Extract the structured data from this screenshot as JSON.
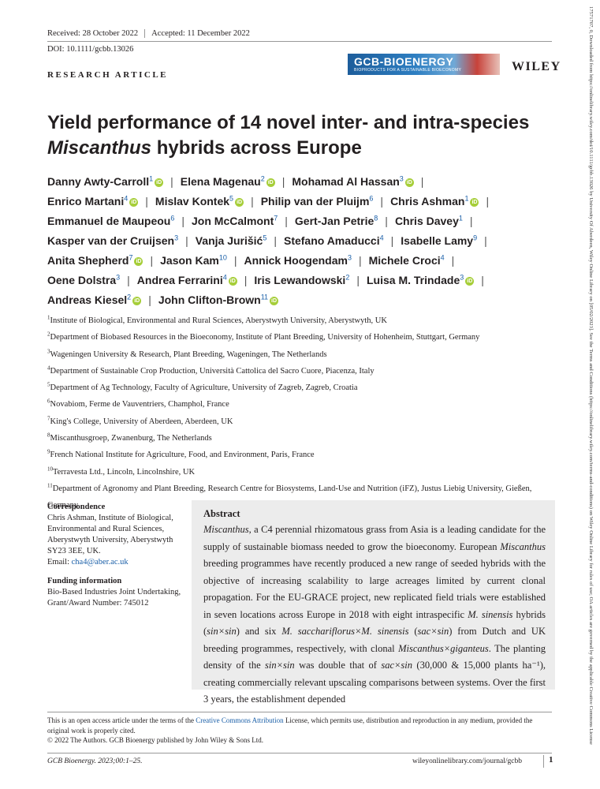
{
  "header": {
    "received": "Received: 28 October 2022",
    "accepted": "Accepted: 11 December 2022",
    "doi": "DOI: 10.1111/gcbb.13026",
    "article_type": "RESEARCH ARTICLE",
    "journal_banner_name": "GCB-BIOENERGY",
    "journal_banner_sub": "BIOPRODUCTS FOR A SUSTAINABLE BIOECONOMY",
    "publisher": "WILEY"
  },
  "title_pre": "Yield performance of 14 novel inter- and intra-species ",
  "title_italic": "Miscanthus",
  "title_post": " hybrids across Europe",
  "authors": [
    {
      "name": "Danny Awty-Carroll",
      "sup": "1",
      "orcid": true
    },
    {
      "name": "Elena Magenau",
      "sup": "2",
      "orcid": true
    },
    {
      "name": "Mohamad Al Hassan",
      "sup": "3",
      "orcid": true
    },
    {
      "name": "Enrico Martani",
      "sup": "4",
      "orcid": true
    },
    {
      "name": "Mislav Kontek",
      "sup": "5",
      "orcid": true
    },
    {
      "name": "Philip van der Pluijm",
      "sup": "6",
      "orcid": false
    },
    {
      "name": "Chris Ashman",
      "sup": "1",
      "orcid": true
    },
    {
      "name": "Emmanuel de Maupeou",
      "sup": "6",
      "orcid": false
    },
    {
      "name": "Jon McCalmont",
      "sup": "7",
      "orcid": false
    },
    {
      "name": "Gert-Jan Petrie",
      "sup": "8",
      "orcid": false
    },
    {
      "name": "Chris Davey",
      "sup": "1",
      "orcid": false
    },
    {
      "name": "Kasper van der Cruijsen",
      "sup": "3",
      "orcid": false
    },
    {
      "name": "Vanja Jurišić",
      "sup": "5",
      "orcid": false
    },
    {
      "name": "Stefano Amaducci",
      "sup": "4",
      "orcid": false
    },
    {
      "name": "Isabelle Lamy",
      "sup": "9",
      "orcid": false
    },
    {
      "name": "Anita Shepherd",
      "sup": "7",
      "orcid": true
    },
    {
      "name": "Jason Kam",
      "sup": "10",
      "orcid": false
    },
    {
      "name": "Annick Hoogendam",
      "sup": "3",
      "orcid": false
    },
    {
      "name": "Michele Croci",
      "sup": "4",
      "orcid": false
    },
    {
      "name": "Oene Dolstra",
      "sup": "3",
      "orcid": false
    },
    {
      "name": "Andrea Ferrarini",
      "sup": "4",
      "orcid": true
    },
    {
      "name": "Iris Lewandowski",
      "sup": "2",
      "orcid": false
    },
    {
      "name": "Luisa M. Trindade",
      "sup": "3",
      "orcid": true
    },
    {
      "name": "Andreas Kiesel",
      "sup": "2",
      "orcid": true
    },
    {
      "name": "John Clifton-Brown",
      "sup": "11",
      "orcid": true
    }
  ],
  "author_lines": [
    [
      0,
      1,
      2
    ],
    [
      3,
      4,
      5,
      6
    ],
    [
      7,
      8,
      9,
      10
    ],
    [
      11,
      12,
      13,
      14
    ],
    [
      15,
      16,
      17,
      18
    ],
    [
      19,
      20,
      21,
      22
    ],
    [
      23,
      24
    ]
  ],
  "affiliations": [
    {
      "n": "1",
      "text": "Institute of Biological, Environmental and Rural Sciences, Aberystwyth University, Aberystwyth, UK"
    },
    {
      "n": "2",
      "text": "Department of Biobased Resources in the Bioeconomy, Institute of Plant Breeding, University of Hohenheim, Stuttgart, Germany"
    },
    {
      "n": "3",
      "text": "Wageningen University & Research, Plant Breeding, Wageningen, The Netherlands"
    },
    {
      "n": "4",
      "text": "Department of Sustainable Crop Production, Università Cattolica del Sacro Cuore, Piacenza, Italy"
    },
    {
      "n": "5",
      "text": "Department of Ag Technology, Faculty of Agriculture, University of Zagreb, Zagreb, Croatia"
    },
    {
      "n": "6",
      "text": "Novabiom, Ferme de Vauventriers, Champhol, France"
    },
    {
      "n": "7",
      "text": "King's College, University of Aberdeen, Aberdeen, UK"
    },
    {
      "n": "8",
      "text": "Miscanthusgroep, Zwanenburg, The Netherlands"
    },
    {
      "n": "9",
      "text": "French National Institute for Agriculture, Food, and Environment, Paris, France"
    },
    {
      "n": "10",
      "text": "Terravesta Ltd., Lincoln, Lincolnshire, UK"
    },
    {
      "n": "11",
      "text": "Department of Agronomy and Plant Breeding, Research Centre for Biosystems, Land-Use and Nutrition (iFZ), Justus Liebig University, Gießen, Germany"
    }
  ],
  "correspondence": {
    "heading": "Correspondence",
    "lines": [
      "Chris Ashman, Institute of Biological,",
      "Environmental and Rural Sciences,",
      "Aberystwyth University, Aberystwyth",
      "SY23 3EE, UK."
    ],
    "email_label": "Email: ",
    "email": "cha4@aber.ac.uk"
  },
  "funding": {
    "heading": "Funding information",
    "lines": [
      "Bio-Based Industries Joint Undertaking,",
      "Grant/Award Number: 745012"
    ]
  },
  "abstract": {
    "heading": "Abstract",
    "segments": [
      {
        "t": "Miscanthus",
        "i": true
      },
      {
        "t": ", a C4 perennial rhizomatous grass from Asia is a leading candidate for the supply of sustainable biomass needed to grow the bioeconomy. European ",
        "i": false
      },
      {
        "t": "Miscanthus",
        "i": true
      },
      {
        "t": " breeding programmes have recently produced a new range of seeded hybrids with the objective of increasing scalability to large acreages limited by current clonal propagation. For the EU-GRACE project, new replicated field trials were established in seven locations across Europe in 2018 with eight intraspecific ",
        "i": false
      },
      {
        "t": "M. sinensis",
        "i": true
      },
      {
        "t": " hybrids (",
        "i": false
      },
      {
        "t": "sin×sin",
        "i": true
      },
      {
        "t": ") and six ",
        "i": false
      },
      {
        "t": "M. sacchariflorus×M. sinensis",
        "i": true
      },
      {
        "t": " (",
        "i": false
      },
      {
        "t": "sac×sin",
        "i": true
      },
      {
        "t": ") from Dutch and UK breeding programmes, respectively, with clonal ",
        "i": false
      },
      {
        "t": "Miscanthus×giganteus",
        "i": true
      },
      {
        "t": ". The planting density of the ",
        "i": false
      },
      {
        "t": "sin×sin",
        "i": true
      },
      {
        "t": " was double that of ",
        "i": false
      },
      {
        "t": "sac×sin",
        "i": true
      },
      {
        "t": " (30,000 & 15,000 plants ha⁻¹), creating commercially relevant upscaling comparisons between systems. Over the first 3 years, the establishment depended",
        "i": false
      }
    ]
  },
  "license": {
    "pre": "This is an open access article under the terms of the ",
    "link": "Creative Commons Attribution",
    "post": " License, which permits use, distribution and reproduction in any medium, provided the original work is properly cited.",
    "copyright": "© 2022 The Authors. GCB Bioenergy published by John Wiley & Sons Ltd."
  },
  "footer": {
    "citation": "GCB Bioenergy. 2023;00:1–25.",
    "website": "wileyonlinelibrary.com/journal/gcbb",
    "page": "1"
  },
  "sidebar_vertical": "17571707, 0, Downloaded from https://onlinelibrary.wiley.com/doi/10.1111/gcbb.13026 by University Of Aberdeen, Wiley Online Library on [05/02/2023]. See the Terms and Conditions (https://onlinelibrary.wiley.com/terms-and-conditions) on Wiley Online Library for rules of use; OA articles are governed by the applicable Creative Commons License"
}
